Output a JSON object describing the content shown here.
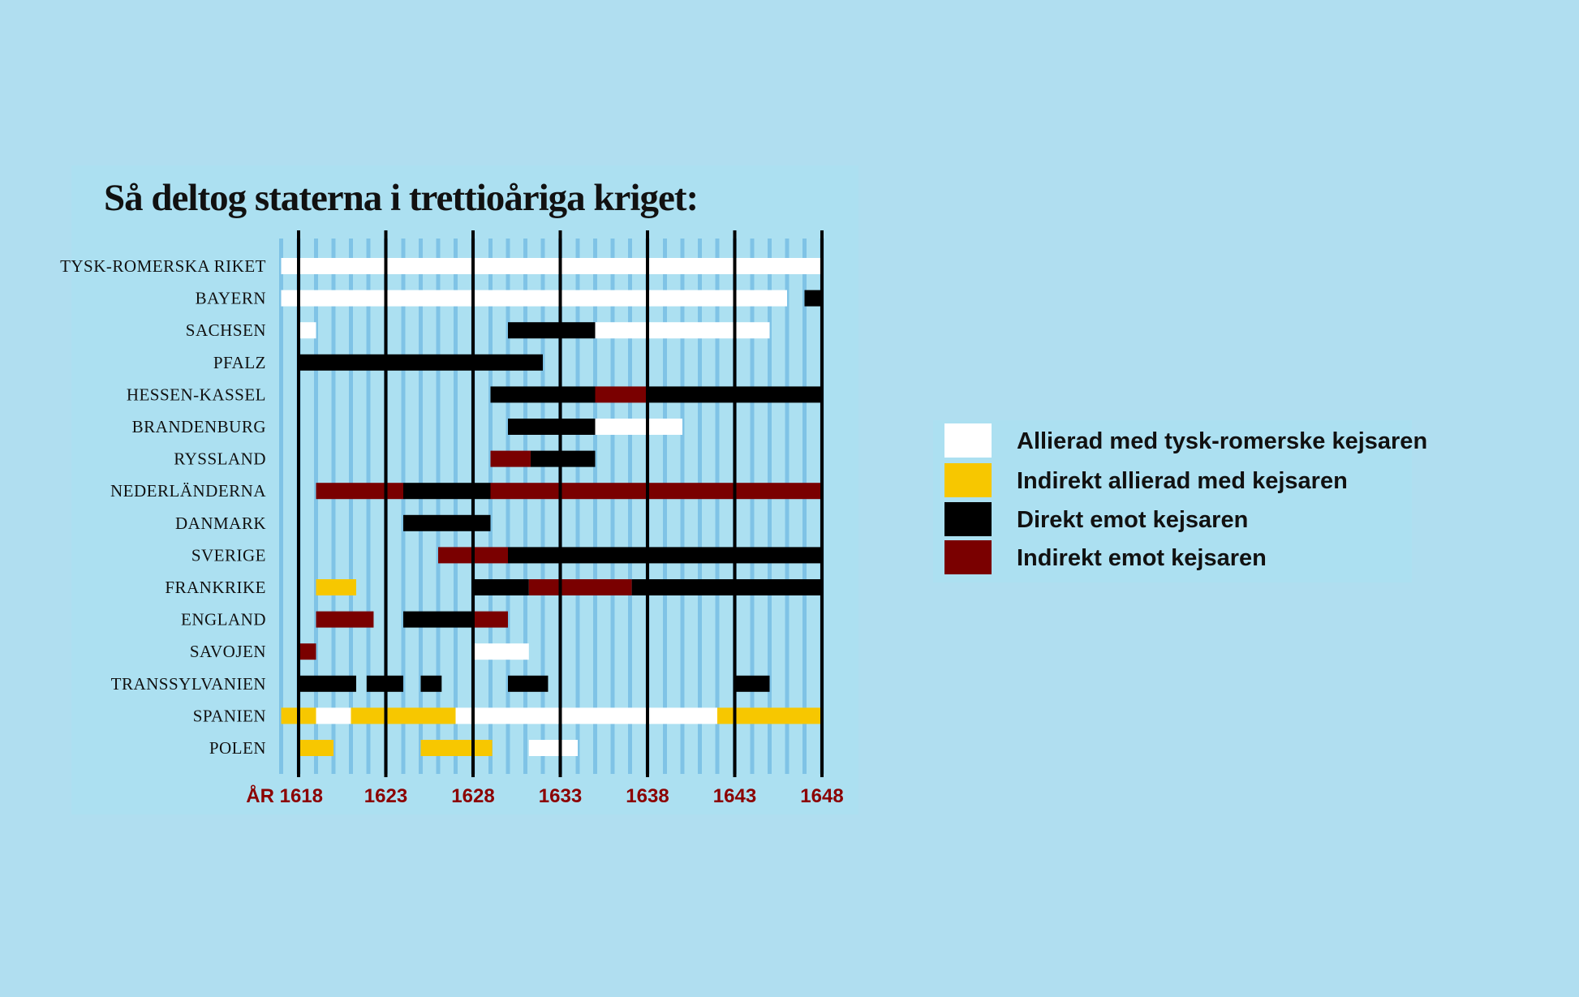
{
  "colors": {
    "background": "#b0def0",
    "panel": "#ace0f1",
    "stripe": "#7fc3e6",
    "grid_major": "#000000",
    "allied": "#ffffff",
    "indirect_allied": "#f7c700",
    "direct_against": "#000000",
    "indirect_against": "#7a0000",
    "tick_text": "#8b0000"
  },
  "chart_data": {
    "type": "timeline",
    "title": "Så deltog staterna i trettioåriga kriget:",
    "xlim": [
      1618,
      1648
    ],
    "x_ticks": [
      1618,
      1623,
      1628,
      1633,
      1638,
      1643,
      1648
    ],
    "x_tick_labels": [
      "ÅR 1618",
      "1623",
      "1628",
      "1633",
      "1638",
      "1643",
      "1648"
    ],
    "grid": true,
    "legend_position": "right",
    "legend": [
      {
        "key": "allied",
        "label": "Allierad med tysk-romerske kejsaren"
      },
      {
        "key": "indirect_allied",
        "label": "Indirekt allierad med kejsaren"
      },
      {
        "key": "direct_against",
        "label": "Direkt emot kejsaren"
      },
      {
        "key": "indirect_against",
        "label": "Indirekt emot kejsaren"
      }
    ],
    "rows": [
      {
        "name": "TYSK-ROMERSKA RIKET",
        "segments": [
          [
            1617,
            1648,
            "allied"
          ]
        ]
      },
      {
        "name": "BAYERN",
        "segments": [
          [
            1617,
            1646,
            "allied"
          ],
          [
            1647,
            1648,
            "direct_against"
          ]
        ]
      },
      {
        "name": "SACHSEN",
        "segments": [
          [
            1618,
            1619,
            "allied"
          ],
          [
            1630,
            1635,
            "direct_against"
          ],
          [
            1635,
            1645,
            "allied"
          ]
        ]
      },
      {
        "name": "PFALZ",
        "segments": [
          [
            1618,
            1632,
            "direct_against"
          ]
        ]
      },
      {
        "name": "HESSEN-KASSEL",
        "segments": [
          [
            1629,
            1635,
            "direct_against"
          ],
          [
            1635,
            1638,
            "indirect_against"
          ],
          [
            1638,
            1648,
            "direct_against"
          ]
        ]
      },
      {
        "name": "BRANDENBURG",
        "segments": [
          [
            1630,
            1635,
            "direct_against"
          ],
          [
            1635,
            1640,
            "allied"
          ]
        ]
      },
      {
        "name": "RYSSLAND",
        "segments": [
          [
            1629,
            1631.3,
            "indirect_against"
          ],
          [
            1631.3,
            1635,
            "direct_against"
          ]
        ]
      },
      {
        "name": "NEDERLÄNDERNA",
        "segments": [
          [
            1619,
            1624,
            "indirect_against"
          ],
          [
            1624,
            1629,
            "direct_against"
          ],
          [
            1629,
            1648,
            "indirect_against"
          ]
        ]
      },
      {
        "name": "DANMARK",
        "segments": [
          [
            1624,
            1629,
            "direct_against"
          ]
        ]
      },
      {
        "name": "SVERIGE",
        "segments": [
          [
            1626,
            1630,
            "indirect_against"
          ],
          [
            1630,
            1648,
            "direct_against"
          ]
        ]
      },
      {
        "name": "FRANKRIKE",
        "segments": [
          [
            1619,
            1621.3,
            "indirect_allied"
          ],
          [
            1628,
            1631.2,
            "direct_against"
          ],
          [
            1631.2,
            1637.1,
            "indirect_against"
          ],
          [
            1637.1,
            1648,
            "direct_against"
          ]
        ]
      },
      {
        "name": "ENGLAND",
        "segments": [
          [
            1619,
            1622.3,
            "indirect_against"
          ],
          [
            1624,
            1628,
            "direct_against"
          ],
          [
            1628,
            1630,
            "indirect_against"
          ]
        ]
      },
      {
        "name": "SAVOJEN",
        "segments": [
          [
            1618,
            1619,
            "indirect_against"
          ],
          [
            1628,
            1631.2,
            "allied"
          ]
        ]
      },
      {
        "name": "TRANSSYLVANIEN",
        "segments": [
          [
            1618,
            1621.3,
            "direct_against"
          ],
          [
            1621.9,
            1624,
            "direct_against"
          ],
          [
            1625,
            1626.2,
            "direct_against"
          ],
          [
            1630,
            1632.3,
            "direct_against"
          ],
          [
            1643,
            1645,
            "direct_against"
          ]
        ]
      },
      {
        "name": "SPANIEN",
        "segments": [
          [
            1617,
            1619,
            "indirect_allied"
          ],
          [
            1619,
            1621,
            "allied"
          ],
          [
            1621,
            1627,
            "indirect_allied"
          ],
          [
            1627,
            1642,
            "allied"
          ],
          [
            1642,
            1648,
            "indirect_allied"
          ]
        ]
      },
      {
        "name": "POLEN",
        "segments": [
          [
            1618,
            1620,
            "indirect_allied"
          ],
          [
            1625,
            1629.1,
            "indirect_allied"
          ],
          [
            1631.2,
            1634,
            "allied"
          ]
        ]
      }
    ]
  }
}
